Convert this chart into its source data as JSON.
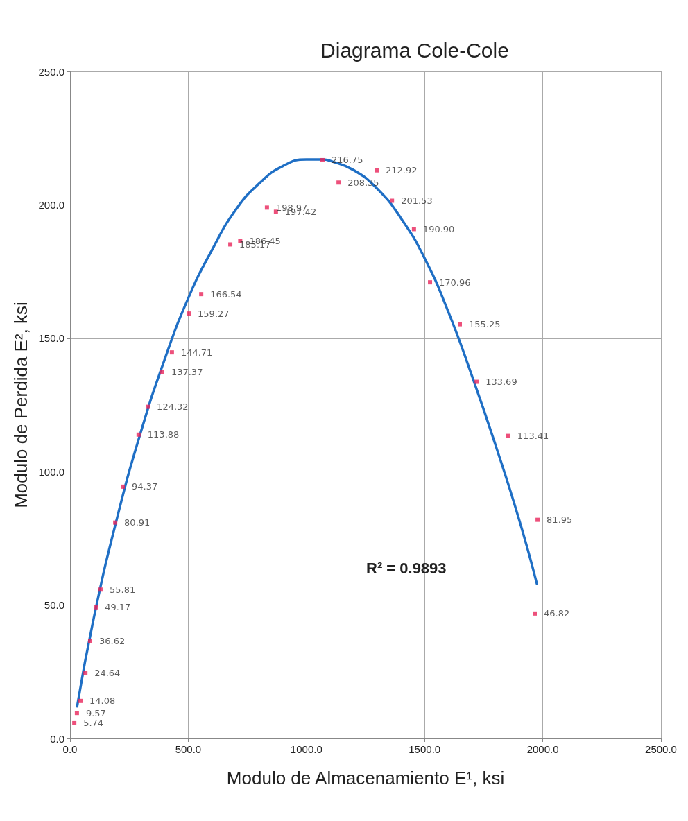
{
  "chart_data": {
    "type": "scatter",
    "title": "Diagrama Cole-Cole",
    "xlabel": "Modulo de Almacenamiento E¹, ksi",
    "ylabel": "Modulo de Perdida E², ksi",
    "xlim": [
      0,
      2500
    ],
    "xticks": [
      {
        "value": 0,
        "label": "0.0"
      },
      {
        "value": 500,
        "label": "500.0"
      },
      {
        "value": 1000,
        "label": "1000.0"
      },
      {
        "value": 1500,
        "label": "1500.0"
      },
      {
        "value": 2000,
        "label": "2000.0"
      },
      {
        "value": 2500,
        "label": "2500.0"
      }
    ],
    "ylim": [
      0,
      250
    ],
    "yticks": [
      {
        "value": 0,
        "label": "0.0"
      },
      {
        "value": 50,
        "label": "50.0"
      },
      {
        "value": 100,
        "label": "100.0"
      },
      {
        "value": 150,
        "label": "150.0"
      },
      {
        "value": 200,
        "label": "200.0"
      },
      {
        "value": 250,
        "label": "250.0"
      }
    ],
    "grid": true,
    "marker": "square",
    "annotations": [
      "R² = 0.9893"
    ],
    "series": [
      {
        "color": "#e8245a",
        "value_labels": [
          "5.74",
          "9.57",
          "14.08",
          "24.64",
          "36.62",
          "49.17",
          "55.81",
          "80.91",
          "94.37",
          "113.88",
          "124.32",
          "137.37",
          "144.71",
          "159.27",
          "166.54",
          "185.17",
          "186.45",
          "198.97",
          "197.42",
          "216.75",
          "208.35",
          "212.92",
          "201.53",
          "190.90",
          "170.96",
          "155.25",
          "133.69",
          "113.41",
          "81.95",
          "46.82"
        ],
        "x": [
          18,
          29,
          44,
          65,
          85,
          109,
          129,
          191,
          223,
          290,
          329,
          390,
          431,
          502,
          555,
          678,
          720,
          833,
          871,
          1068,
          1136,
          1297,
          1362,
          1455,
          1523,
          1649,
          1720,
          1854,
          1978,
          1966
        ],
        "values": [
          5.74,
          9.57,
          14.08,
          24.64,
          36.62,
          49.17,
          55.81,
          80.91,
          94.37,
          113.88,
          124.32,
          137.37,
          144.71,
          159.27,
          166.54,
          185.17,
          186.45,
          198.97,
          197.42,
          216.75,
          208.35,
          212.92,
          201.53,
          190.9,
          170.96,
          155.25,
          133.69,
          113.41,
          81.95,
          46.82
        ]
      },
      {
        "type": "line",
        "color": "#1f6fc5",
        "marker": "none",
        "x": [
          30,
          100,
          200,
          300,
          400,
          500,
          600,
          700,
          800,
          900,
          1000,
          1070,
          1100,
          1200,
          1300,
          1400,
          1500,
          1600,
          1700,
          1800,
          1900,
          1975
        ],
        "values": [
          12,
          45,
          83,
          115,
          142,
          165,
          183,
          198,
          208,
          214.5,
          217,
          217,
          216.5,
          213,
          206,
          195,
          180,
          160,
          136,
          110,
          82,
          58
        ]
      }
    ]
  }
}
